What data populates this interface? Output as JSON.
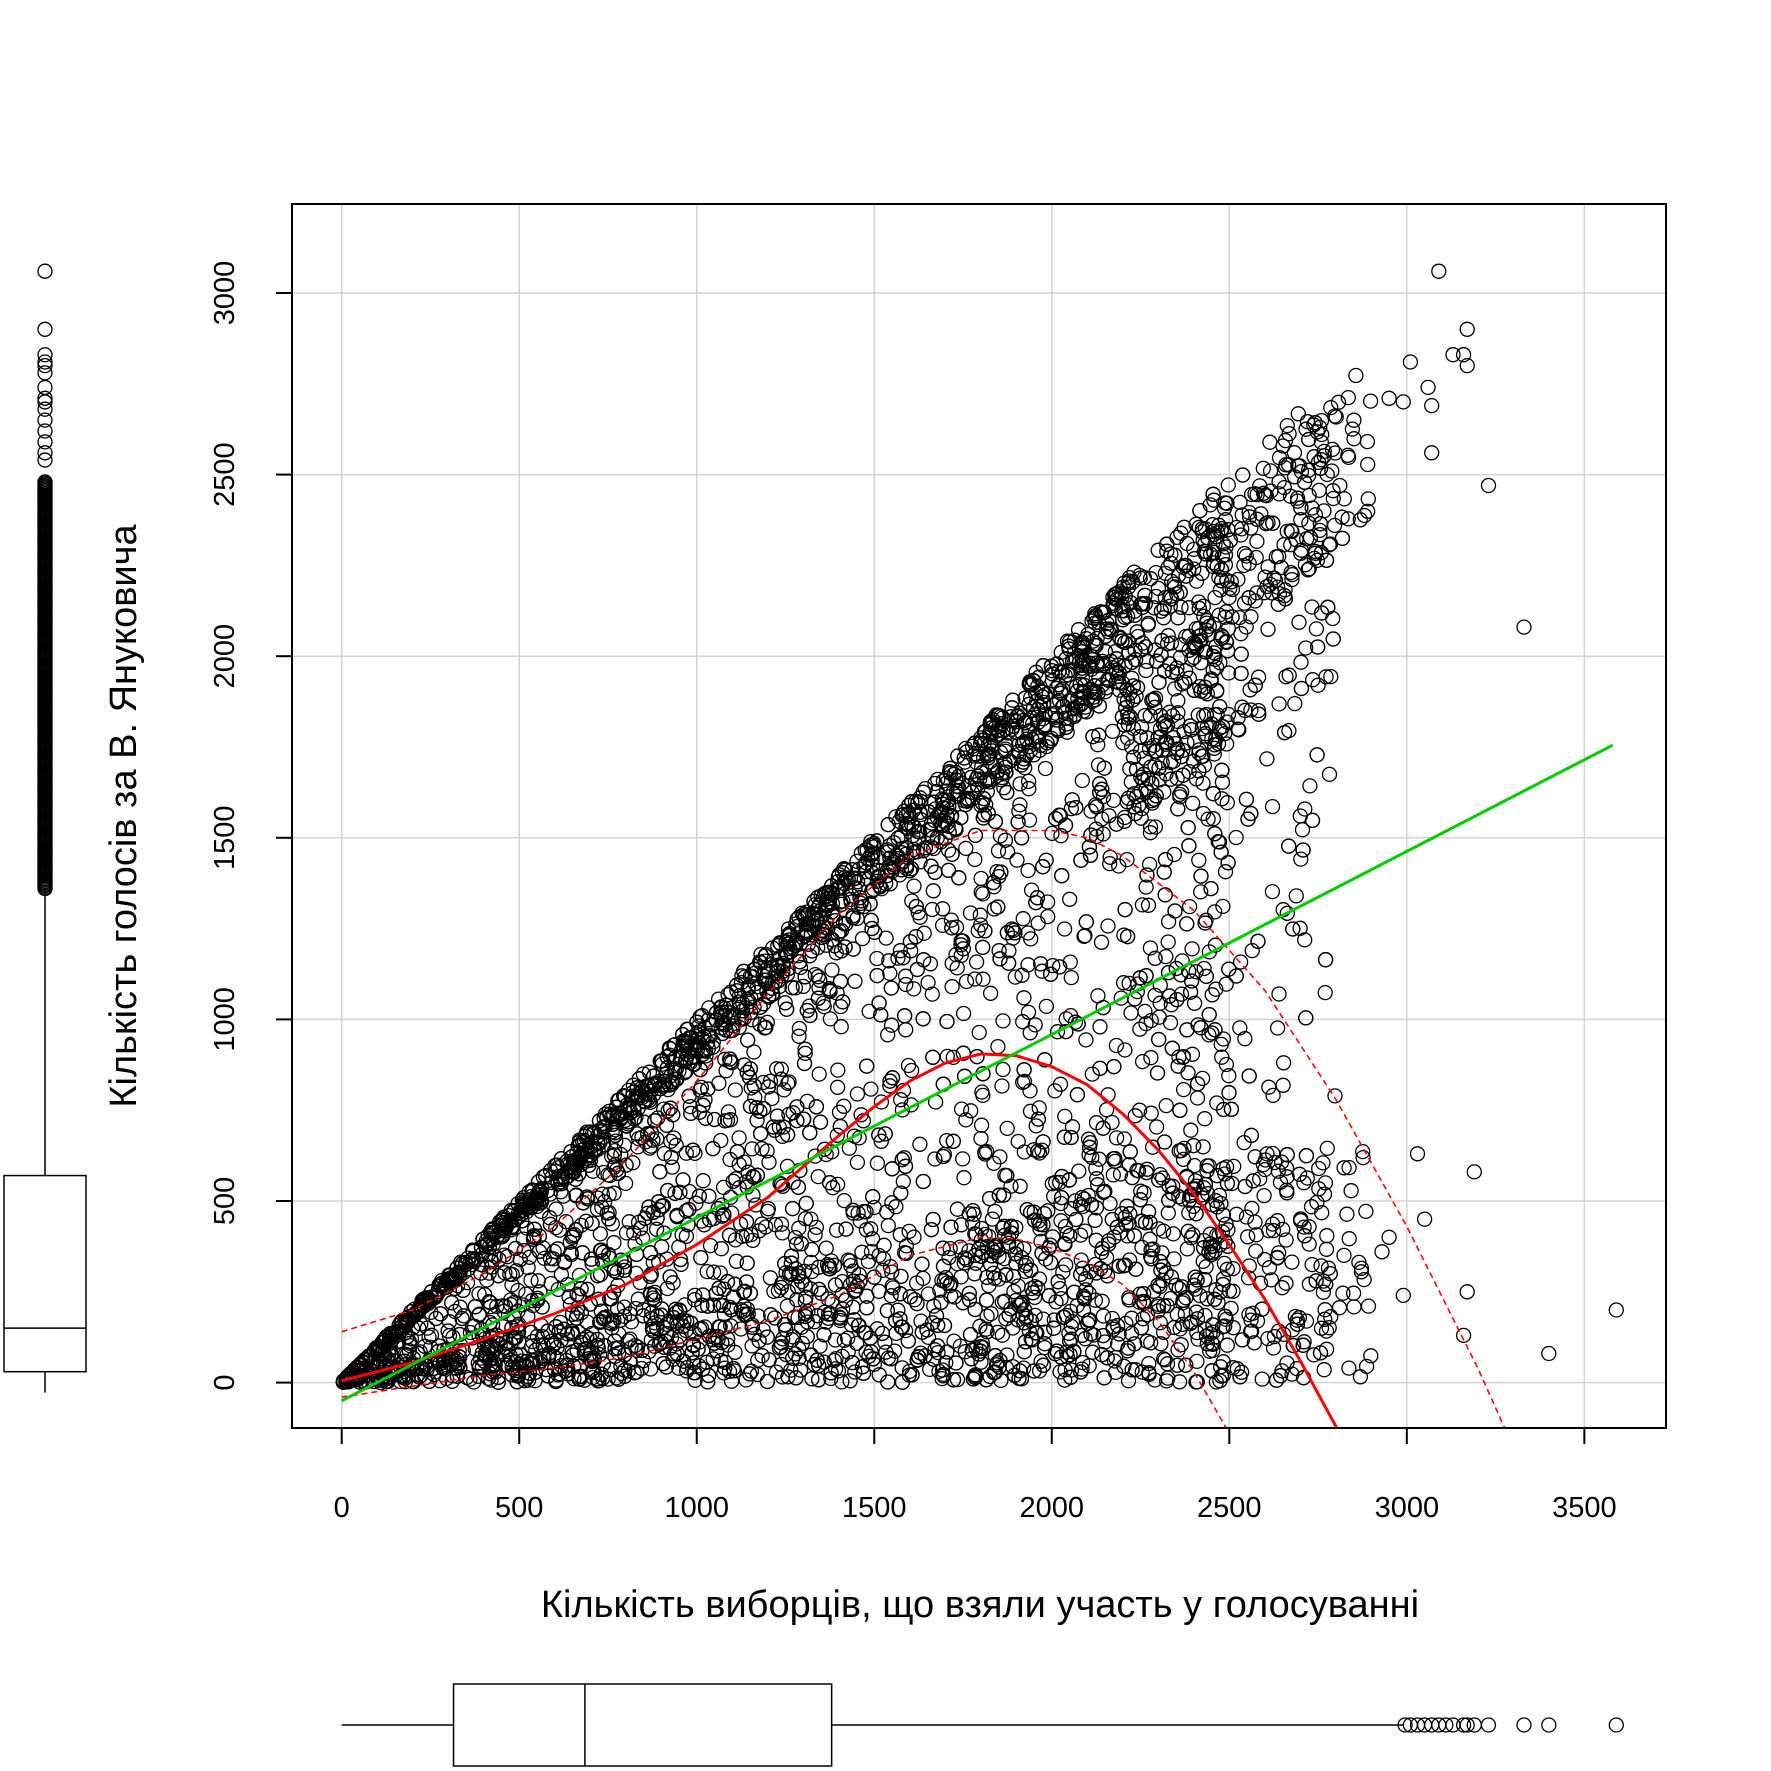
{
  "chart_data": {
    "type": "scatter",
    "xlabel": "Кількість виборців, що взяли участь у голосуванні",
    "ylabel": "Кількість голосів за В. Януковича",
    "xlim": [
      -140,
      3730
    ],
    "ylim": [
      -125,
      3245
    ],
    "x_ticks": [
      0,
      500,
      1000,
      1500,
      2000,
      2500,
      3000,
      3500
    ],
    "y_ticks": [
      0,
      500,
      1000,
      1500,
      2000,
      2500,
      3000
    ],
    "grid": true,
    "colors": {
      "points": "#000000",
      "regression": "#00cc00",
      "smooth": "#ff0000",
      "grid": "#d3d3d3"
    },
    "scatter_shape": "triangle: points mostly between y=0 and y=x, dense near the origin",
    "outlier_points": [
      {
        "x": 3090,
        "y": 3060
      },
      {
        "x": 3170,
        "y": 2900
      },
      {
        "x": 3130,
        "y": 2830
      },
      {
        "x": 3160,
        "y": 2830
      },
      {
        "x": 3010,
        "y": 2810
      },
      {
        "x": 3170,
        "y": 2800
      },
      {
        "x": 3060,
        "y": 2740
      },
      {
        "x": 3070,
        "y": 2690
      },
      {
        "x": 2990,
        "y": 2700
      },
      {
        "x": 2950,
        "y": 2710
      },
      {
        "x": 3070,
        "y": 2560
      },
      {
        "x": 3230,
        "y": 2470
      },
      {
        "x": 3330,
        "y": 2080
      },
      {
        "x": 2750,
        "y": 1920
      },
      {
        "x": 2700,
        "y": 1560
      },
      {
        "x": 3190,
        "y": 580
      },
      {
        "x": 3030,
        "y": 630
      },
      {
        "x": 3050,
        "y": 450
      },
      {
        "x": 3170,
        "y": 250
      },
      {
        "x": 3160,
        "y": 130
      },
      {
        "x": 3590,
        "y": 200
      },
      {
        "x": 3400,
        "y": 80
      },
      {
        "x": 2990,
        "y": 240
      },
      {
        "x": 2950,
        "y": 400
      },
      {
        "x": 2930,
        "y": 360
      }
    ],
    "regression_line": {
      "name": "",
      "x": [
        0,
        3580
      ],
      "y": [
        -50,
        1755
      ]
    },
    "smooth_curve": {
      "x": [
        0,
        200,
        400,
        600,
        800,
        1000,
        1200,
        1400,
        1500,
        1600,
        1700,
        1800,
        1900,
        2000,
        2100,
        2200,
        2300,
        2400,
        2500,
        2600,
        2700,
        2800,
        2900
      ],
      "y": [
        5,
        55,
        120,
        190,
        270,
        380,
        510,
        680,
        760,
        830,
        880,
        905,
        900,
        870,
        820,
        740,
        640,
        520,
        380,
        230,
        60,
        -120,
        -330
      ]
    },
    "smooth_upper": {
      "x": [
        0,
        200,
        400,
        600,
        800,
        1000,
        1200,
        1400,
        1600,
        1800,
        2000,
        2100,
        2200,
        2400,
        2600,
        2800,
        3000,
        3200,
        3310
      ],
      "y": [
        140,
        200,
        300,
        430,
        610,
        830,
        1070,
        1290,
        1450,
        1520,
        1520,
        1500,
        1450,
        1300,
        1080,
        780,
        430,
        40,
        -200
      ]
    },
    "smooth_lower": {
      "x": [
        0,
        200,
        400,
        600,
        800,
        1000,
        1200,
        1400,
        1600,
        1800,
        1900,
        2000,
        2100,
        2200,
        2300,
        2400,
        2500,
        2570
      ],
      "y": [
        -40,
        -10,
        20,
        40,
        70,
        120,
        170,
        240,
        350,
        400,
        395,
        370,
        330,
        270,
        170,
        30,
        -140,
        -260
      ]
    },
    "x_boxplot": {
      "whisker_low": 0,
      "q1": 315,
      "median": 685,
      "q3": 1380,
      "whisker_high": 2990,
      "outliers": [
        2995,
        3010,
        3030,
        3050,
        3070,
        3090,
        3110,
        3130,
        3160,
        3170,
        3190,
        3230,
        3330,
        3400,
        3590
      ]
    },
    "y_boxplot": {
      "whisker_low": 0,
      "q1": 30,
      "median": 150,
      "q3": 570,
      "whisker_high": 1360,
      "dense_outliers_range": [
        1360,
        2480
      ],
      "outliers": [
        2540,
        2560,
        2590,
        2620,
        2650,
        2680,
        2700,
        2710,
        2740,
        2780,
        2800,
        2810,
        2830,
        2900,
        3060
      ]
    }
  }
}
